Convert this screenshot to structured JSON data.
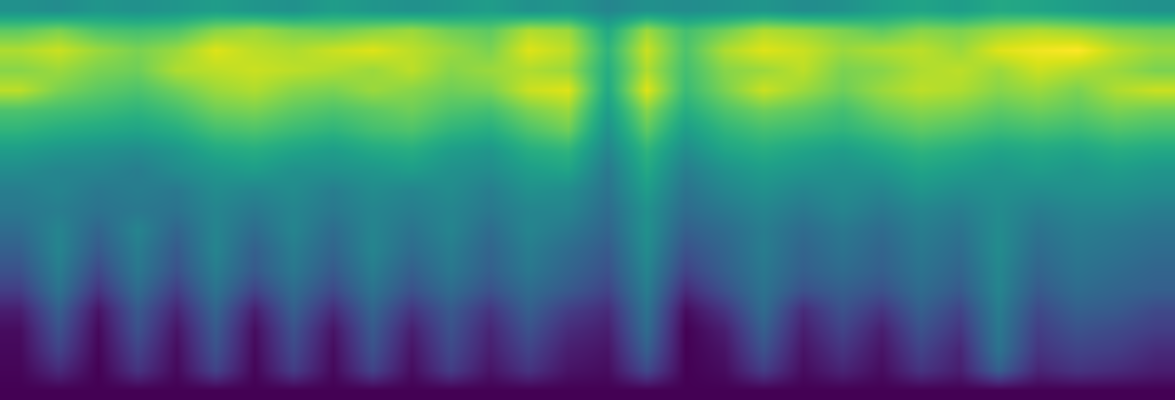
{
  "chart_data": {
    "type": "heatmap",
    "color": "Viridis",
    "tick_labels": false,
    "cells": [
      [
        50,
        48,
        52,
        50,
        52,
        55,
        52,
        50,
        55,
        52,
        50,
        52,
        55,
        50,
        52,
        45,
        50,
        48,
        50,
        52,
        48,
        50,
        55,
        58,
        55,
        60,
        58,
        55,
        52,
        50
      ],
      [
        75,
        80,
        72,
        70,
        72,
        82,
        85,
        80,
        78,
        82,
        85,
        78,
        75,
        88,
        85,
        60,
        85,
        70,
        78,
        88,
        85,
        80,
        75,
        82,
        80,
        85,
        88,
        85,
        80,
        78
      ],
      [
        88,
        92,
        85,
        80,
        85,
        95,
        90,
        88,
        92,
        95,
        90,
        85,
        80,
        95,
        90,
        65,
        92,
        72,
        88,
        95,
        92,
        85,
        88,
        90,
        85,
        95,
        98,
        100,
        90,
        85
      ],
      [
        82,
        85,
        80,
        78,
        88,
        90,
        92,
        90,
        88,
        85,
        90,
        82,
        85,
        88,
        85,
        62,
        88,
        70,
        82,
        85,
        90,
        80,
        82,
        88,
        90,
        85,
        92,
        88,
        85,
        80
      ],
      [
        90,
        80,
        75,
        72,
        78,
        85,
        88,
        82,
        80,
        85,
        82,
        78,
        80,
        92,
        95,
        60,
        95,
        68,
        80,
        92,
        85,
        78,
        85,
        90,
        88,
        82,
        85,
        80,
        88,
        92
      ],
      [
        72,
        70,
        68,
        65,
        70,
        78,
        80,
        75,
        72,
        75,
        78,
        72,
        70,
        80,
        85,
        55,
        82,
        62,
        72,
        78,
        75,
        70,
        78,
        82,
        80,
        75,
        78,
        75,
        80,
        78
      ],
      [
        65,
        62,
        60,
        58,
        62,
        70,
        72,
        68,
        65,
        70,
        72,
        65,
        62,
        72,
        78,
        50,
        75,
        55,
        65,
        70,
        68,
        65,
        70,
        75,
        72,
        68,
        70,
        68,
        72,
        70
      ],
      [
        55,
        52,
        50,
        48,
        52,
        60,
        62,
        58,
        55,
        60,
        62,
        55,
        52,
        62,
        65,
        45,
        65,
        48,
        58,
        62,
        58,
        55,
        60,
        65,
        62,
        58,
        60,
        58,
        62,
        60
      ],
      [
        48,
        45,
        45,
        42,
        48,
        52,
        55,
        50,
        50,
        52,
        55,
        50,
        48,
        55,
        58,
        40,
        60,
        42,
        50,
        55,
        52,
        50,
        52,
        58,
        55,
        52,
        55,
        52,
        55,
        52
      ],
      [
        42,
        45,
        40,
        42,
        40,
        48,
        45,
        48,
        42,
        48,
        45,
        48,
        42,
        50,
        48,
        38,
        55,
        38,
        45,
        50,
        45,
        48,
        45,
        52,
        48,
        50,
        48,
        50,
        50,
        48
      ],
      [
        40,
        42,
        38,
        40,
        38,
        45,
        40,
        45,
        40,
        45,
        42,
        45,
        40,
        45,
        45,
        35,
        50,
        35,
        40,
        45,
        40,
        45,
        40,
        45,
        42,
        48,
        42,
        45,
        45,
        42
      ],
      [
        35,
        45,
        32,
        45,
        32,
        45,
        35,
        45,
        35,
        45,
        38,
        45,
        35,
        45,
        40,
        32,
        50,
        30,
        35,
        42,
        35,
        40,
        35,
        42,
        38,
        48,
        38,
        42,
        40,
        38
      ],
      [
        30,
        45,
        28,
        42,
        28,
        45,
        30,
        42,
        32,
        45,
        35,
        42,
        32,
        42,
        35,
        28,
        48,
        25,
        32,
        42,
        32,
        38,
        32,
        40,
        35,
        48,
        35,
        40,
        38,
        35
      ],
      [
        25,
        42,
        22,
        40,
        25,
        42,
        28,
        40,
        28,
        42,
        30,
        40,
        30,
        40,
        32,
        25,
        45,
        20,
        30,
        40,
        30,
        35,
        30,
        38,
        32,
        46,
        32,
        38,
        35,
        32
      ],
      [
        18,
        38,
        15,
        35,
        18,
        38,
        20,
        35,
        22,
        38,
        25,
        35,
        25,
        35,
        28,
        20,
        42,
        12,
        25,
        38,
        25,
        30,
        25,
        35,
        28,
        45,
        28,
        35,
        32,
        30
      ],
      [
        8,
        30,
        5,
        28,
        10,
        32,
        8,
        30,
        12,
        32,
        15,
        28,
        15,
        30,
        18,
        12,
        38,
        3,
        15,
        35,
        12,
        25,
        15,
        30,
        20,
        42,
        22,
        30,
        28,
        22
      ],
      [
        3,
        25,
        2,
        25,
        5,
        28,
        3,
        25,
        5,
        28,
        8,
        25,
        10,
        25,
        12,
        8,
        35,
        0,
        8,
        30,
        8,
        20,
        8,
        25,
        15,
        40,
        18,
        25,
        22,
        18
      ],
      [
        2,
        20,
        1,
        20,
        3,
        25,
        2,
        22,
        3,
        25,
        5,
        22,
        8,
        20,
        8,
        5,
        30,
        0,
        5,
        25,
        5,
        15,
        5,
        20,
        10,
        38,
        15,
        20,
        18,
        12
      ],
      [
        1,
        12,
        0,
        15,
        2,
        20,
        1,
        18,
        2,
        20,
        3,
        18,
        5,
        15,
        5,
        3,
        22,
        0,
        3,
        18,
        3,
        10,
        3,
        15,
        8,
        30,
        10,
        15,
        12,
        8
      ],
      [
        0,
        0,
        0,
        0,
        0,
        0,
        0,
        0,
        0,
        0,
        0,
        0,
        0,
        0,
        0,
        0,
        0,
        0,
        0,
        0,
        0,
        0,
        0,
        0,
        0,
        0,
        0,
        0,
        0,
        0
      ]
    ]
  }
}
